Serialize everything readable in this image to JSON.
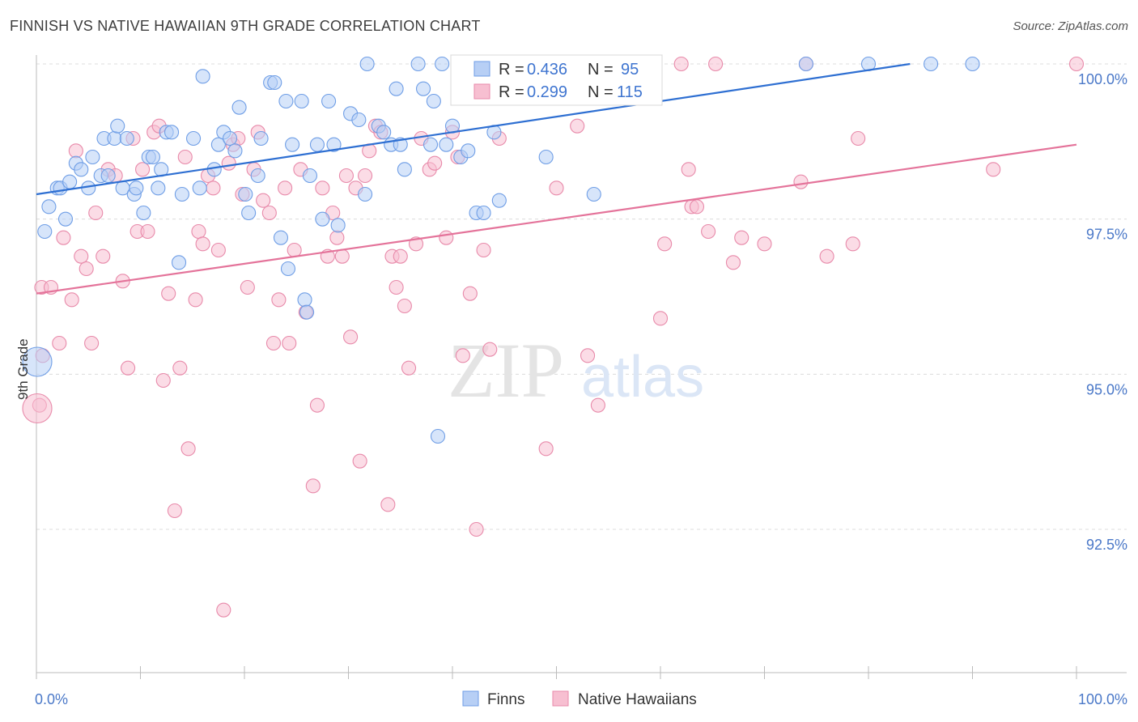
{
  "header": {
    "title": "FINNISH VS NATIVE HAWAIIAN 9TH GRADE CORRELATION CHART",
    "source": "Source: ZipAtlas.com"
  },
  "watermark": {
    "zip": "ZIP",
    "atlas": "atlas"
  },
  "chart_data": {
    "type": "scatter",
    "ylabel": "9th Grade",
    "xlim": [
      0,
      100
    ],
    "ylim": [
      90.0,
      100.4
    ],
    "x_tick_labels": [
      "0.0%",
      "100.0%"
    ],
    "y_ticks": [
      {
        "value": 100.0,
        "label": "100.0%"
      },
      {
        "value": 97.5,
        "label": "97.5%"
      },
      {
        "value": 95.0,
        "label": "95.0%"
      },
      {
        "value": 92.5,
        "label": "92.5%"
      }
    ],
    "grid": "horizontal dashed",
    "legend_placement": "top-center",
    "stats": [
      {
        "r_label": "R =",
        "r": "0.436",
        "n_label": "N =",
        "n": "95"
      },
      {
        "r_label": "R =",
        "r": "0.299",
        "n_label": "N =",
        "n": "115"
      }
    ],
    "series": [
      {
        "name": "Finns",
        "color": "#6f9ee6",
        "fill": "#b7cff5",
        "trend": {
          "x0": 0,
          "y0": 97.9,
          "x1": 84,
          "y1": 100.0
        },
        "points": [
          [
            0.8,
            97.3
          ],
          [
            1.2,
            97.7
          ],
          [
            2.0,
            98.0
          ],
          [
            2.3,
            98.0
          ],
          [
            2.8,
            97.5
          ],
          [
            3.2,
            98.1
          ],
          [
            3.8,
            98.4
          ],
          [
            4.3,
            98.3
          ],
          [
            5.0,
            98.0
          ],
          [
            5.4,
            98.5
          ],
          [
            6.2,
            98.2
          ],
          [
            6.5,
            98.8
          ],
          [
            6.9,
            98.2
          ],
          [
            7.5,
            98.8
          ],
          [
            7.8,
            99.0
          ],
          [
            8.3,
            98.0
          ],
          [
            8.7,
            98.8
          ],
          [
            9.4,
            97.9
          ],
          [
            9.6,
            98.0
          ],
          [
            10.3,
            97.6
          ],
          [
            10.8,
            98.5
          ],
          [
            11.2,
            98.5
          ],
          [
            11.7,
            98.0
          ],
          [
            12.0,
            98.3
          ],
          [
            12.5,
            98.9
          ],
          [
            13.0,
            98.9
          ],
          [
            13.7,
            96.8
          ],
          [
            14.0,
            97.9
          ],
          [
            15.1,
            98.8
          ],
          [
            15.7,
            98.0
          ],
          [
            16.0,
            99.8
          ],
          [
            17.1,
            98.3
          ],
          [
            17.5,
            98.7
          ],
          [
            18.0,
            98.9
          ],
          [
            18.6,
            98.8
          ],
          [
            19.1,
            98.6
          ],
          [
            19.5,
            99.3
          ],
          [
            20.1,
            97.9
          ],
          [
            20.4,
            97.6
          ],
          [
            21.3,
            98.2
          ],
          [
            21.6,
            98.8
          ],
          [
            22.5,
            99.7
          ],
          [
            22.9,
            99.7
          ],
          [
            23.5,
            97.2
          ],
          [
            24.0,
            99.4
          ],
          [
            24.2,
            96.7
          ],
          [
            24.6,
            98.7
          ],
          [
            25.5,
            99.4
          ],
          [
            25.8,
            96.2
          ],
          [
            26.0,
            96.0
          ],
          [
            26.3,
            98.2
          ],
          [
            27.0,
            98.7
          ],
          [
            27.5,
            97.5
          ],
          [
            28.1,
            99.4
          ],
          [
            28.6,
            98.7
          ],
          [
            29.0,
            97.4
          ],
          [
            30.2,
            99.2
          ],
          [
            31.0,
            99.1
          ],
          [
            31.6,
            97.9
          ],
          [
            31.8,
            100.0
          ],
          [
            32.9,
            99.0
          ],
          [
            33.4,
            98.9
          ],
          [
            34.1,
            98.7
          ],
          [
            34.6,
            99.6
          ],
          [
            35.0,
            98.7
          ],
          [
            35.4,
            98.3
          ],
          [
            36.7,
            100.0
          ],
          [
            37.2,
            99.6
          ],
          [
            37.9,
            98.7
          ],
          [
            38.2,
            99.4
          ],
          [
            38.6,
            94.0
          ],
          [
            39.0,
            100.0
          ],
          [
            39.4,
            98.7
          ],
          [
            40.0,
            99.0
          ],
          [
            40.8,
            98.5
          ],
          [
            41.5,
            98.6
          ],
          [
            42.3,
            97.6
          ],
          [
            43.0,
            97.6
          ],
          [
            44.0,
            98.9
          ],
          [
            44.5,
            97.8
          ],
          [
            49.0,
            98.5
          ],
          [
            49.5,
            100.0
          ],
          [
            53.6,
            97.9
          ],
          [
            56.8,
            100.0
          ],
          [
            74.0,
            100.0
          ],
          [
            80.0,
            100.0
          ],
          [
            86.0,
            100.0
          ],
          [
            90.0,
            100.0
          ]
        ]
      },
      {
        "name": "Native Hawaiians",
        "color": "#e88aaa",
        "fill": "#f7bfd1",
        "trend": {
          "x0": 0,
          "y0": 96.3,
          "x1": 100,
          "y1": 98.7
        },
        "points": [
          [
            0.5,
            96.4
          ],
          [
            1.4,
            96.4
          ],
          [
            2.2,
            95.5
          ],
          [
            2.6,
            97.2
          ],
          [
            3.4,
            96.2
          ],
          [
            3.8,
            98.6
          ],
          [
            4.3,
            96.9
          ],
          [
            4.8,
            96.7
          ],
          [
            5.3,
            95.5
          ],
          [
            5.7,
            97.6
          ],
          [
            6.4,
            96.9
          ],
          [
            6.9,
            98.3
          ],
          [
            7.6,
            98.2
          ],
          [
            8.3,
            96.5
          ],
          [
            8.8,
            95.1
          ],
          [
            9.3,
            98.8
          ],
          [
            9.7,
            97.3
          ],
          [
            10.2,
            98.3
          ],
          [
            10.7,
            97.3
          ],
          [
            11.3,
            98.9
          ],
          [
            11.8,
            99.0
          ],
          [
            12.2,
            94.9
          ],
          [
            12.7,
            96.3
          ],
          [
            13.3,
            92.8
          ],
          [
            13.8,
            95.1
          ],
          [
            14.3,
            98.5
          ],
          [
            14.6,
            93.8
          ],
          [
            15.3,
            96.2
          ],
          [
            15.6,
            97.3
          ],
          [
            16.0,
            97.1
          ],
          [
            16.5,
            98.2
          ],
          [
            17.0,
            98.0
          ],
          [
            17.5,
            97.0
          ],
          [
            18.0,
            91.2
          ],
          [
            18.5,
            98.4
          ],
          [
            18.9,
            98.7
          ],
          [
            19.4,
            98.8
          ],
          [
            19.8,
            97.9
          ],
          [
            20.3,
            96.4
          ],
          [
            20.9,
            98.3
          ],
          [
            21.3,
            98.9
          ],
          [
            21.8,
            97.8
          ],
          [
            22.4,
            97.6
          ],
          [
            22.8,
            95.5
          ],
          [
            23.3,
            96.2
          ],
          [
            23.9,
            98.0
          ],
          [
            24.3,
            95.5
          ],
          [
            24.8,
            97.0
          ],
          [
            25.4,
            98.3
          ],
          [
            25.9,
            96.0
          ],
          [
            26.6,
            93.2
          ],
          [
            27.0,
            94.5
          ],
          [
            27.5,
            98.0
          ],
          [
            28.0,
            96.9
          ],
          [
            28.5,
            97.6
          ],
          [
            28.9,
            97.2
          ],
          [
            29.4,
            96.9
          ],
          [
            29.8,
            98.2
          ],
          [
            30.2,
            95.6
          ],
          [
            30.7,
            98.0
          ],
          [
            31.1,
            93.6
          ],
          [
            31.6,
            98.2
          ],
          [
            32.0,
            98.6
          ],
          [
            32.6,
            99.0
          ],
          [
            33.1,
            98.9
          ],
          [
            33.8,
            92.9
          ],
          [
            34.2,
            96.9
          ],
          [
            34.6,
            96.4
          ],
          [
            35.0,
            96.9
          ],
          [
            35.4,
            96.1
          ],
          [
            35.8,
            95.1
          ],
          [
            36.5,
            97.1
          ],
          [
            37.0,
            98.8
          ],
          [
            37.8,
            98.3
          ],
          [
            38.3,
            98.4
          ],
          [
            39.4,
            97.2
          ],
          [
            40.0,
            98.9
          ],
          [
            40.5,
            98.5
          ],
          [
            41.0,
            95.3
          ],
          [
            41.7,
            96.3
          ],
          [
            42.3,
            92.5
          ],
          [
            43.0,
            97.0
          ],
          [
            43.6,
            95.4
          ],
          [
            44.5,
            98.8
          ],
          [
            46.0,
            100.0
          ],
          [
            49.0,
            93.8
          ],
          [
            50.0,
            98.0
          ],
          [
            52.0,
            99.0
          ],
          [
            53.0,
            95.3
          ],
          [
            54.0,
            94.5
          ],
          [
            56.0,
            100.0
          ],
          [
            60.0,
            95.9
          ],
          [
            60.4,
            97.1
          ],
          [
            62.0,
            100.0
          ],
          [
            62.7,
            98.3
          ],
          [
            63.0,
            97.7
          ],
          [
            63.5,
            97.7
          ],
          [
            64.6,
            97.3
          ],
          [
            65.3,
            100.0
          ],
          [
            67.0,
            96.8
          ],
          [
            67.8,
            97.2
          ],
          [
            70.0,
            97.1
          ],
          [
            74.0,
            100.0
          ],
          [
            73.5,
            98.1
          ],
          [
            76.0,
            96.9
          ],
          [
            78.5,
            97.1
          ],
          [
            79.0,
            98.8
          ],
          [
            92.0,
            98.3
          ],
          [
            100.0,
            100.0
          ],
          [
            0.3,
            94.5
          ],
          [
            0.6,
            95.3
          ]
        ]
      }
    ]
  },
  "bottom_legend": [
    {
      "label": "Finns"
    },
    {
      "label": "Native Hawaiians"
    }
  ]
}
